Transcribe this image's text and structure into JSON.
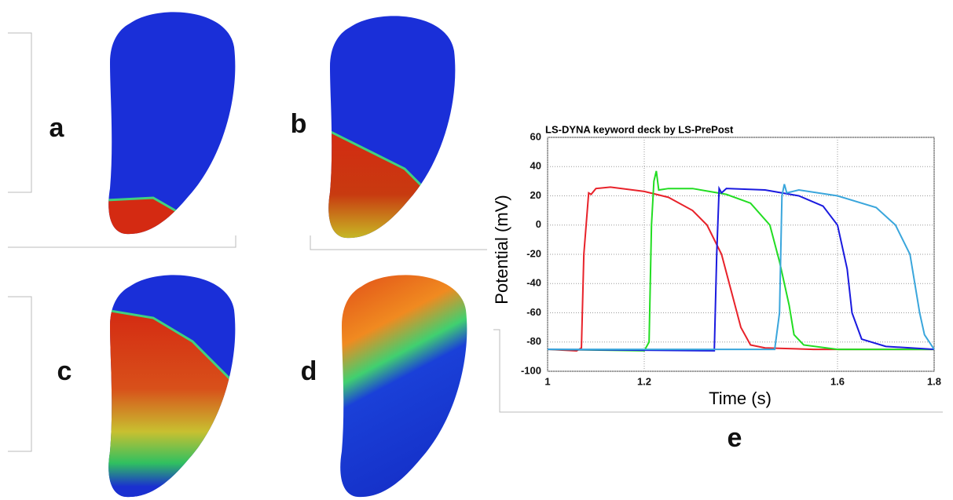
{
  "panel_labels": [
    "a",
    "b",
    "c",
    "d",
    "e"
  ],
  "chart_data": {
    "type": "line",
    "title": "LS-DYNA keyword deck by LS-PrePost",
    "xlabel": "Time (s)",
    "ylabel": "Potential (mV)",
    "xlim": [
      1,
      1.8
    ],
    "ylim": [
      -100,
      60
    ],
    "xticks": [
      1,
      1.2,
      1.6,
      1.8
    ],
    "yticks": [
      60,
      40,
      20,
      0,
      -20,
      -40,
      -60,
      -80,
      -100
    ],
    "grid": true,
    "series": [
      {
        "color": "#e8222a",
        "x": [
          1.0,
          1.06,
          1.07,
          1.075,
          1.085,
          1.09,
          1.1,
          1.13,
          1.2,
          1.25,
          1.3,
          1.33,
          1.36,
          1.38,
          1.4,
          1.42,
          1.45,
          1.55,
          1.8
        ],
        "values": [
          -85,
          -86,
          -84,
          -20,
          22,
          21,
          25,
          26,
          23,
          19,
          10,
          0,
          -20,
          -45,
          -70,
          -82,
          -84,
          -85,
          -85
        ]
      },
      {
        "color": "#22dd22",
        "x": [
          1.0,
          1.2,
          1.21,
          1.215,
          1.22,
          1.225,
          1.23,
          1.25,
          1.3,
          1.37,
          1.42,
          1.46,
          1.48,
          1.5,
          1.51,
          1.53,
          1.6,
          1.8
        ],
        "values": [
          -85,
          -86,
          -80,
          0,
          30,
          37,
          24,
          25,
          25,
          21,
          15,
          0,
          -25,
          -55,
          -75,
          -82,
          -85,
          -85
        ]
      },
      {
        "color": "#1a1adf",
        "x": [
          1.0,
          1.345,
          1.35,
          1.355,
          1.36,
          1.37,
          1.45,
          1.52,
          1.57,
          1.6,
          1.62,
          1.63,
          1.65,
          1.7,
          1.8
        ],
        "values": [
          -85,
          -86,
          -20,
          25,
          22,
          25,
          24,
          20,
          13,
          0,
          -30,
          -60,
          -78,
          -83,
          -85
        ]
      },
      {
        "color": "#3aa6dc",
        "x": [
          1.0,
          1.47,
          1.48,
          1.485,
          1.49,
          1.495,
          1.52,
          1.6,
          1.68,
          1.72,
          1.75,
          1.77,
          1.78,
          1.8
        ],
        "values": [
          -85,
          -85,
          -60,
          20,
          28,
          22,
          24,
          20,
          12,
          0,
          -20,
          -60,
          -75,
          -85
        ]
      }
    ]
  }
}
